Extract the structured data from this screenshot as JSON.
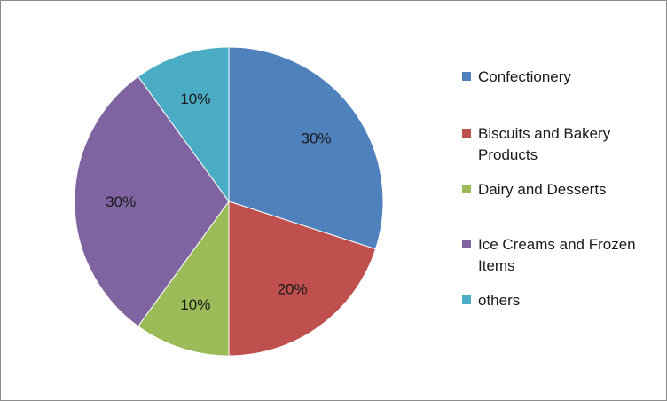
{
  "chart_data": {
    "type": "pie",
    "categories": [
      "Confectionery",
      "Biscuits and Bakery Products",
      "Dairy and Desserts",
      "Ice Creams and Frozen Items",
      "others"
    ],
    "values": [
      30,
      20,
      10,
      30,
      10
    ],
    "data_labels": [
      "30%",
      "20%",
      "10%",
      "30%",
      "10%"
    ],
    "colors": [
      "#4F81BD",
      "#C0504D",
      "#9BBB59",
      "#8064A2",
      "#4BACC6"
    ],
    "legend_position": "right",
    "start": "top",
    "direction": "clockwise"
  }
}
